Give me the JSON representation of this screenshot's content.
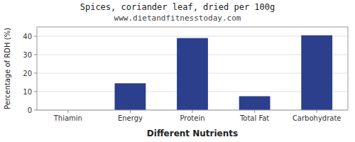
{
  "chart_data": {
    "type": "bar",
    "title": "Spices, coriander leaf, dried per 100g",
    "subtitle": "www.dietandfitnesstoday.com",
    "xlabel": "Different Nutrients",
    "ylabel": "Percentage of RDH (%)",
    "categories": [
      "Thiamin",
      "Energy",
      "Protein",
      "Total Fat",
      "Carbohydrate"
    ],
    "values": [
      0,
      14.5,
      39,
      7.5,
      40.5
    ],
    "color": "#2b3f8c",
    "ylim": [
      0,
      45
    ],
    "yticks": [
      0,
      10,
      20,
      30,
      40
    ],
    "grid": true
  }
}
